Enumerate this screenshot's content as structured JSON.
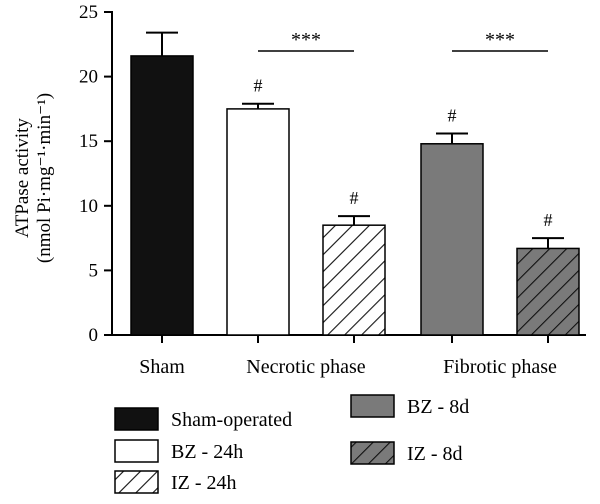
{
  "chart_data": {
    "type": "bar",
    "ylabel_line1": "ATPase activity",
    "ylabel_line2": "(nmol Pi·mg⁻¹·min⁻¹)",
    "ylim": [
      0,
      25
    ],
    "yticks": [
      "0",
      "5",
      "10",
      "15",
      "20",
      "25"
    ],
    "groups": [
      "Sham",
      "Necrotic phase",
      "Fibrotic phase"
    ],
    "series": [
      {
        "name": "Sham-operated",
        "value": 21.6,
        "error": 1.8,
        "group": 0,
        "fill": "#111111",
        "pattern": "solid",
        "marker": ""
      },
      {
        "name": "BZ - 24h",
        "value": 17.5,
        "error": 0.4,
        "group": 1,
        "fill": "#ffffff",
        "pattern": "solid",
        "marker": "#"
      },
      {
        "name": "IZ - 24h",
        "value": 8.5,
        "error": 0.7,
        "group": 1,
        "fill": "#ffffff",
        "pattern": "hatch-light",
        "marker": "#"
      },
      {
        "name": "BZ - 8d",
        "value": 14.8,
        "error": 0.8,
        "group": 2,
        "fill": "#7a7a7a",
        "pattern": "solid",
        "marker": "#"
      },
      {
        "name": "IZ - 8d",
        "value": 6.7,
        "error": 0.8,
        "group": 2,
        "fill": "#7a7a7a",
        "pattern": "hatch-dark",
        "marker": "#"
      }
    ],
    "significance": [
      {
        "label": "***",
        "from": 1,
        "to": 2
      },
      {
        "label": "***",
        "from": 3,
        "to": 4
      }
    ],
    "legend_placement": "bottom",
    "grid": false
  }
}
